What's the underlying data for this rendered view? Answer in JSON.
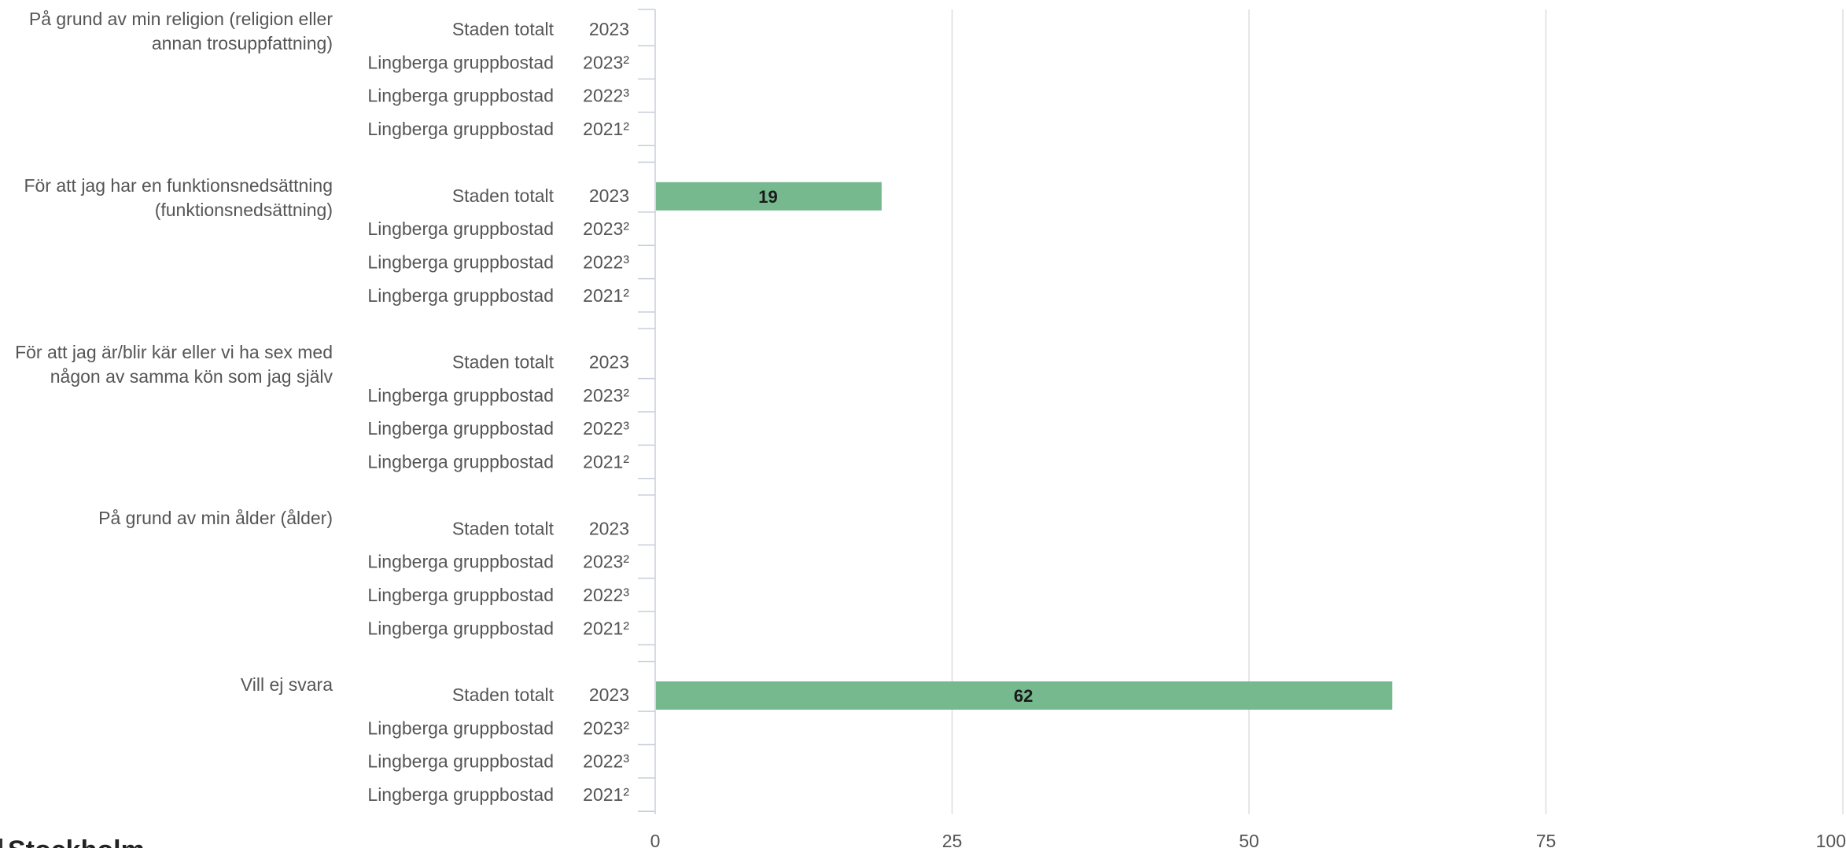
{
  "chart_data": {
    "type": "bar",
    "orientation": "horizontal",
    "xlim": [
      0,
      100
    ],
    "x_ticks": [
      0,
      25,
      50,
      75,
      100
    ],
    "grid": "vertical",
    "bar_color": "#77b98e",
    "groups": [
      {
        "label": "På grund av min religion (religion eller annan trosuppfattning)",
        "rows": [
          {
            "series": "Staden totalt",
            "year": "2023",
            "value": null
          },
          {
            "series": "Lingberga gruppbostad",
            "year": "2023²",
            "value": null
          },
          {
            "series": "Lingberga gruppbostad",
            "year": "2022³",
            "value": null
          },
          {
            "series": "Lingberga gruppbostad",
            "year": "2021²",
            "value": null
          }
        ]
      },
      {
        "label": "För att jag har en funktionsnedsättning (funktionsnedsättning)",
        "rows": [
          {
            "series": "Staden totalt",
            "year": "2023",
            "value": 19
          },
          {
            "series": "Lingberga gruppbostad",
            "year": "2023²",
            "value": null
          },
          {
            "series": "Lingberga gruppbostad",
            "year": "2022³",
            "value": null
          },
          {
            "series": "Lingberga gruppbostad",
            "year": "2021²",
            "value": null
          }
        ]
      },
      {
        "label": "För att jag är/blir kär eller vi ha sex med någon av samma kön som jag själv",
        "rows": [
          {
            "series": "Staden totalt",
            "year": "2023",
            "value": null
          },
          {
            "series": "Lingberga gruppbostad",
            "year": "2023²",
            "value": null
          },
          {
            "series": "Lingberga gruppbostad",
            "year": "2022³",
            "value": null
          },
          {
            "series": "Lingberga gruppbostad",
            "year": "2021²",
            "value": null
          }
        ]
      },
      {
        "label": "På grund av min ålder (ålder)",
        "rows": [
          {
            "series": "Staden totalt",
            "year": "2023",
            "value": null
          },
          {
            "series": "Lingberga gruppbostad",
            "year": "2023²",
            "value": null
          },
          {
            "series": "Lingberga gruppbostad",
            "year": "2022³",
            "value": null
          },
          {
            "series": "Lingberga gruppbostad",
            "year": "2021²",
            "value": null
          }
        ]
      },
      {
        "label": "Vill ej svara",
        "rows": [
          {
            "series": "Staden totalt",
            "year": "2023",
            "value": 62
          },
          {
            "series": "Lingberga gruppbostad",
            "year": "2023²",
            "value": null
          },
          {
            "series": "Lingberga gruppbostad",
            "year": "2022³",
            "value": null
          },
          {
            "series": "Lingberga gruppbostad",
            "year": "2021²",
            "value": null
          }
        ]
      }
    ]
  },
  "footer": {
    "text": "Stockholm"
  }
}
